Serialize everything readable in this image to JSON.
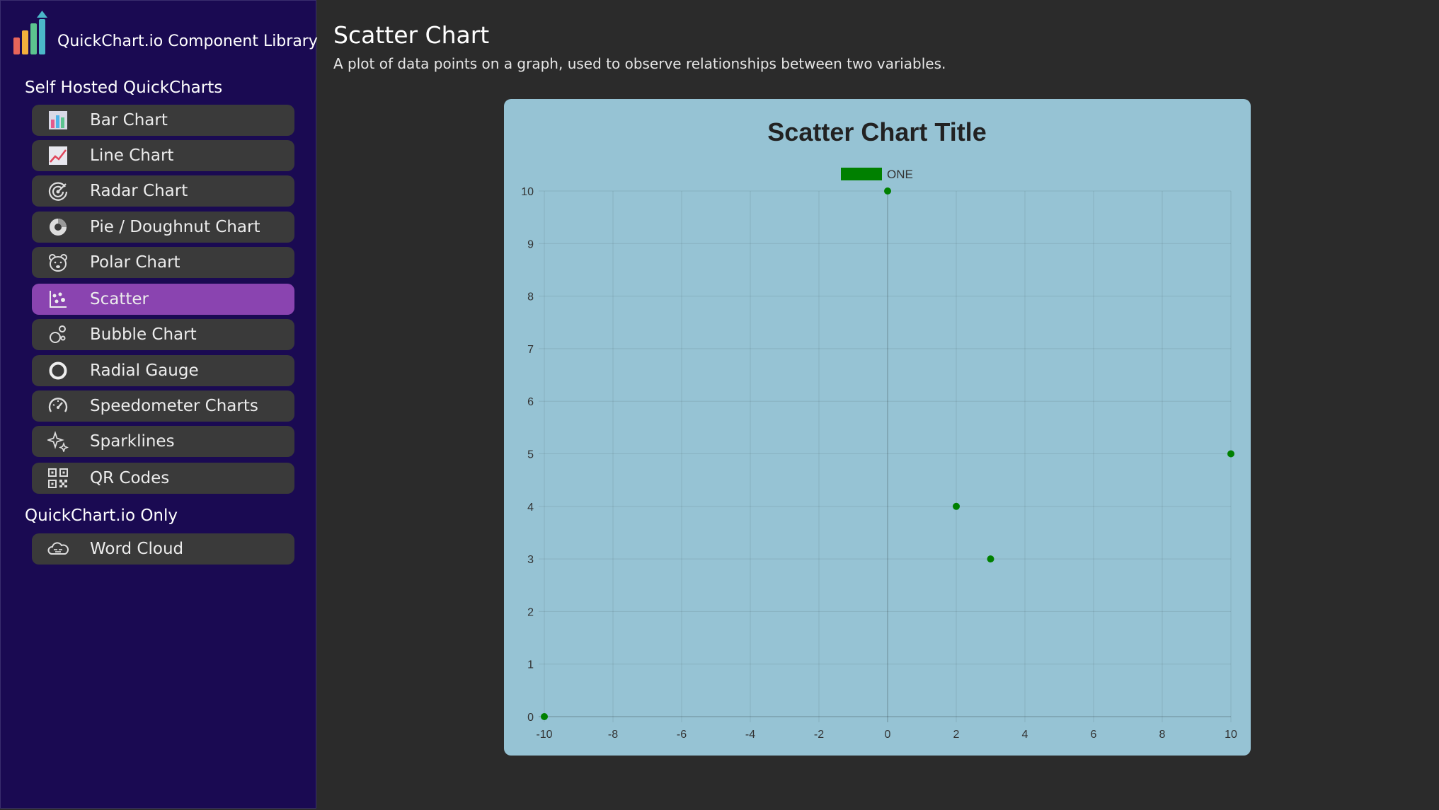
{
  "app": {
    "title": "QuickChart.io Component Library"
  },
  "sidebar": {
    "section1_title": "Self Hosted QuickCharts",
    "items": [
      {
        "label": "Bar Chart",
        "icon": "bar-chart-icon"
      },
      {
        "label": "Line Chart",
        "icon": "line-chart-icon"
      },
      {
        "label": "Radar Chart",
        "icon": "radar-chart-icon"
      },
      {
        "label": "Pie / Doughnut Chart",
        "icon": "pie-chart-icon"
      },
      {
        "label": "Polar Chart",
        "icon": "polar-bear-icon"
      },
      {
        "label": "Scatter",
        "icon": "scatter-icon",
        "active": true
      },
      {
        "label": "Bubble Chart",
        "icon": "bubble-chart-icon"
      },
      {
        "label": "Radial Gauge",
        "icon": "radial-gauge-icon"
      },
      {
        "label": "Speedometer Charts",
        "icon": "speedometer-icon"
      },
      {
        "label": "Sparklines",
        "icon": "sparkles-icon"
      },
      {
        "label": "QR Codes",
        "icon": "qr-code-icon"
      }
    ],
    "section2_title": "QuickChart.io Only",
    "items2": [
      {
        "label": "Word Cloud",
        "icon": "cloud-icon"
      }
    ]
  },
  "main": {
    "title": "Scatter Chart",
    "description": "A plot of data points on a graph, used to observe relationships between two variables."
  },
  "colors": {
    "sidebar_bg": "#1a0a52",
    "active_item": "#8a44b0",
    "chart_bg": "#96c3d4",
    "series": "#008000"
  },
  "chart_data": {
    "type": "scatter",
    "title": "Scatter Chart Title",
    "xlabel": "",
    "ylabel": "",
    "xlim": [
      -10,
      10
    ],
    "ylim": [
      0,
      10
    ],
    "x_ticks": [
      "-10",
      "-8",
      "-6",
      "-4",
      "-2",
      "0",
      "2",
      "4",
      "6",
      "8",
      "10"
    ],
    "y_ticks": [
      "0",
      "1",
      "2",
      "3",
      "4",
      "5",
      "6",
      "7",
      "8",
      "9",
      "10"
    ],
    "grid": true,
    "legend": "top-center",
    "series": [
      {
        "name": "ONE",
        "color": "#008000",
        "points": [
          {
            "x": -10,
            "y": 0
          },
          {
            "x": 0,
            "y": 10
          },
          {
            "x": 2,
            "y": 4
          },
          {
            "x": 3,
            "y": 3
          },
          {
            "x": 10,
            "y": 5
          }
        ]
      }
    ]
  }
}
